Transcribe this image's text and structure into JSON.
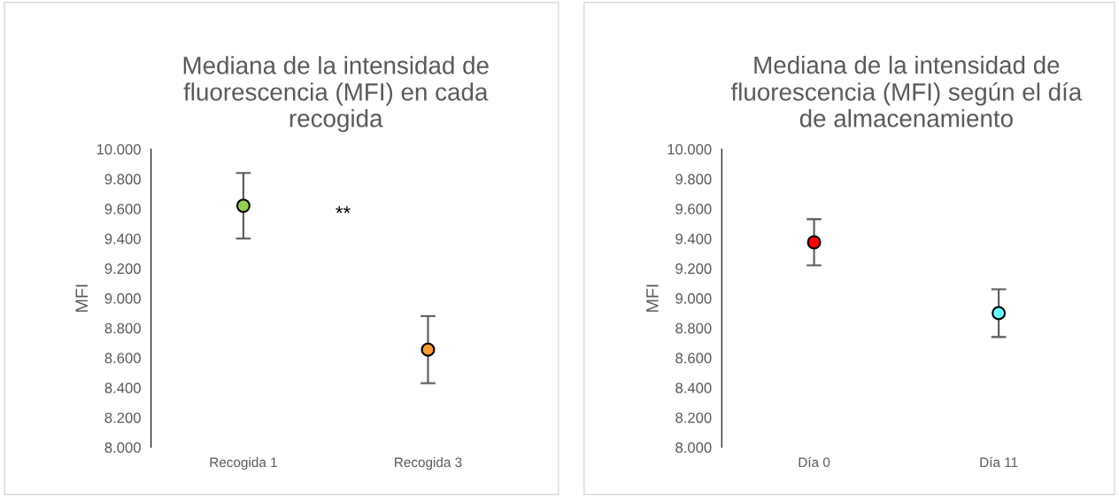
{
  "chart_data": [
    {
      "type": "scatter",
      "title": "Mediana de la intensidad de fluorescencia (MFI) en cada recogida",
      "ylabel": "MFI",
      "categories": [
        "Recogida 1",
        "Recogida 3"
      ],
      "values": [
        9620,
        8655
      ],
      "colors": [
        "#92d050",
        "#ff9933"
      ],
      "errors": [
        [
          9400,
          9840
        ],
        [
          8430,
          8880
        ]
      ],
      "marker": "circle",
      "annotations": [
        "**"
      ],
      "ylim": [
        8000,
        10000
      ],
      "yticks": [
        {
          "value": 8000,
          "label": "8.000"
        },
        {
          "value": 8200,
          "label": "8.200"
        },
        {
          "value": 8400,
          "label": "8.400"
        },
        {
          "value": 8600,
          "label": "8.600"
        },
        {
          "value": 8800,
          "label": "8.800"
        },
        {
          "value": 9000,
          "label": "9.000"
        },
        {
          "value": 9200,
          "label": "9.200"
        },
        {
          "value": 9400,
          "label": "9.400"
        },
        {
          "value": 9600,
          "label": "9.600"
        },
        {
          "value": 9800,
          "label": "9.800"
        },
        {
          "value": 10000,
          "label": "10.000"
        }
      ],
      "grid": false,
      "legend": false
    },
    {
      "type": "scatter",
      "title": "Mediana de la intensidad de fluorescencia (MFI) según el día de almacenamiento",
      "ylabel": "MFI",
      "categories": [
        "Día 0",
        "Día 11"
      ],
      "values": [
        9375,
        8900
      ],
      "colors": [
        "#ff0000",
        "#66ffff"
      ],
      "errors": [
        [
          9220,
          9530
        ],
        [
          8740,
          9060
        ]
      ],
      "marker": "circle",
      "ylim": [
        8000,
        10000
      ],
      "yticks": [
        {
          "value": 8000,
          "label": "8.000"
        },
        {
          "value": 8200,
          "label": "8.200"
        },
        {
          "value": 8400,
          "label": "8.400"
        },
        {
          "value": 8600,
          "label": "8.600"
        },
        {
          "value": 8800,
          "label": "8.800"
        },
        {
          "value": 9000,
          "label": "9.000"
        },
        {
          "value": 9200,
          "label": "9.200"
        },
        {
          "value": 9400,
          "label": "9.400"
        },
        {
          "value": 9600,
          "label": "9.600"
        },
        {
          "value": 9800,
          "label": "9.800"
        },
        {
          "value": 10000,
          "label": "10.000"
        }
      ],
      "grid": false,
      "legend": false
    }
  ]
}
